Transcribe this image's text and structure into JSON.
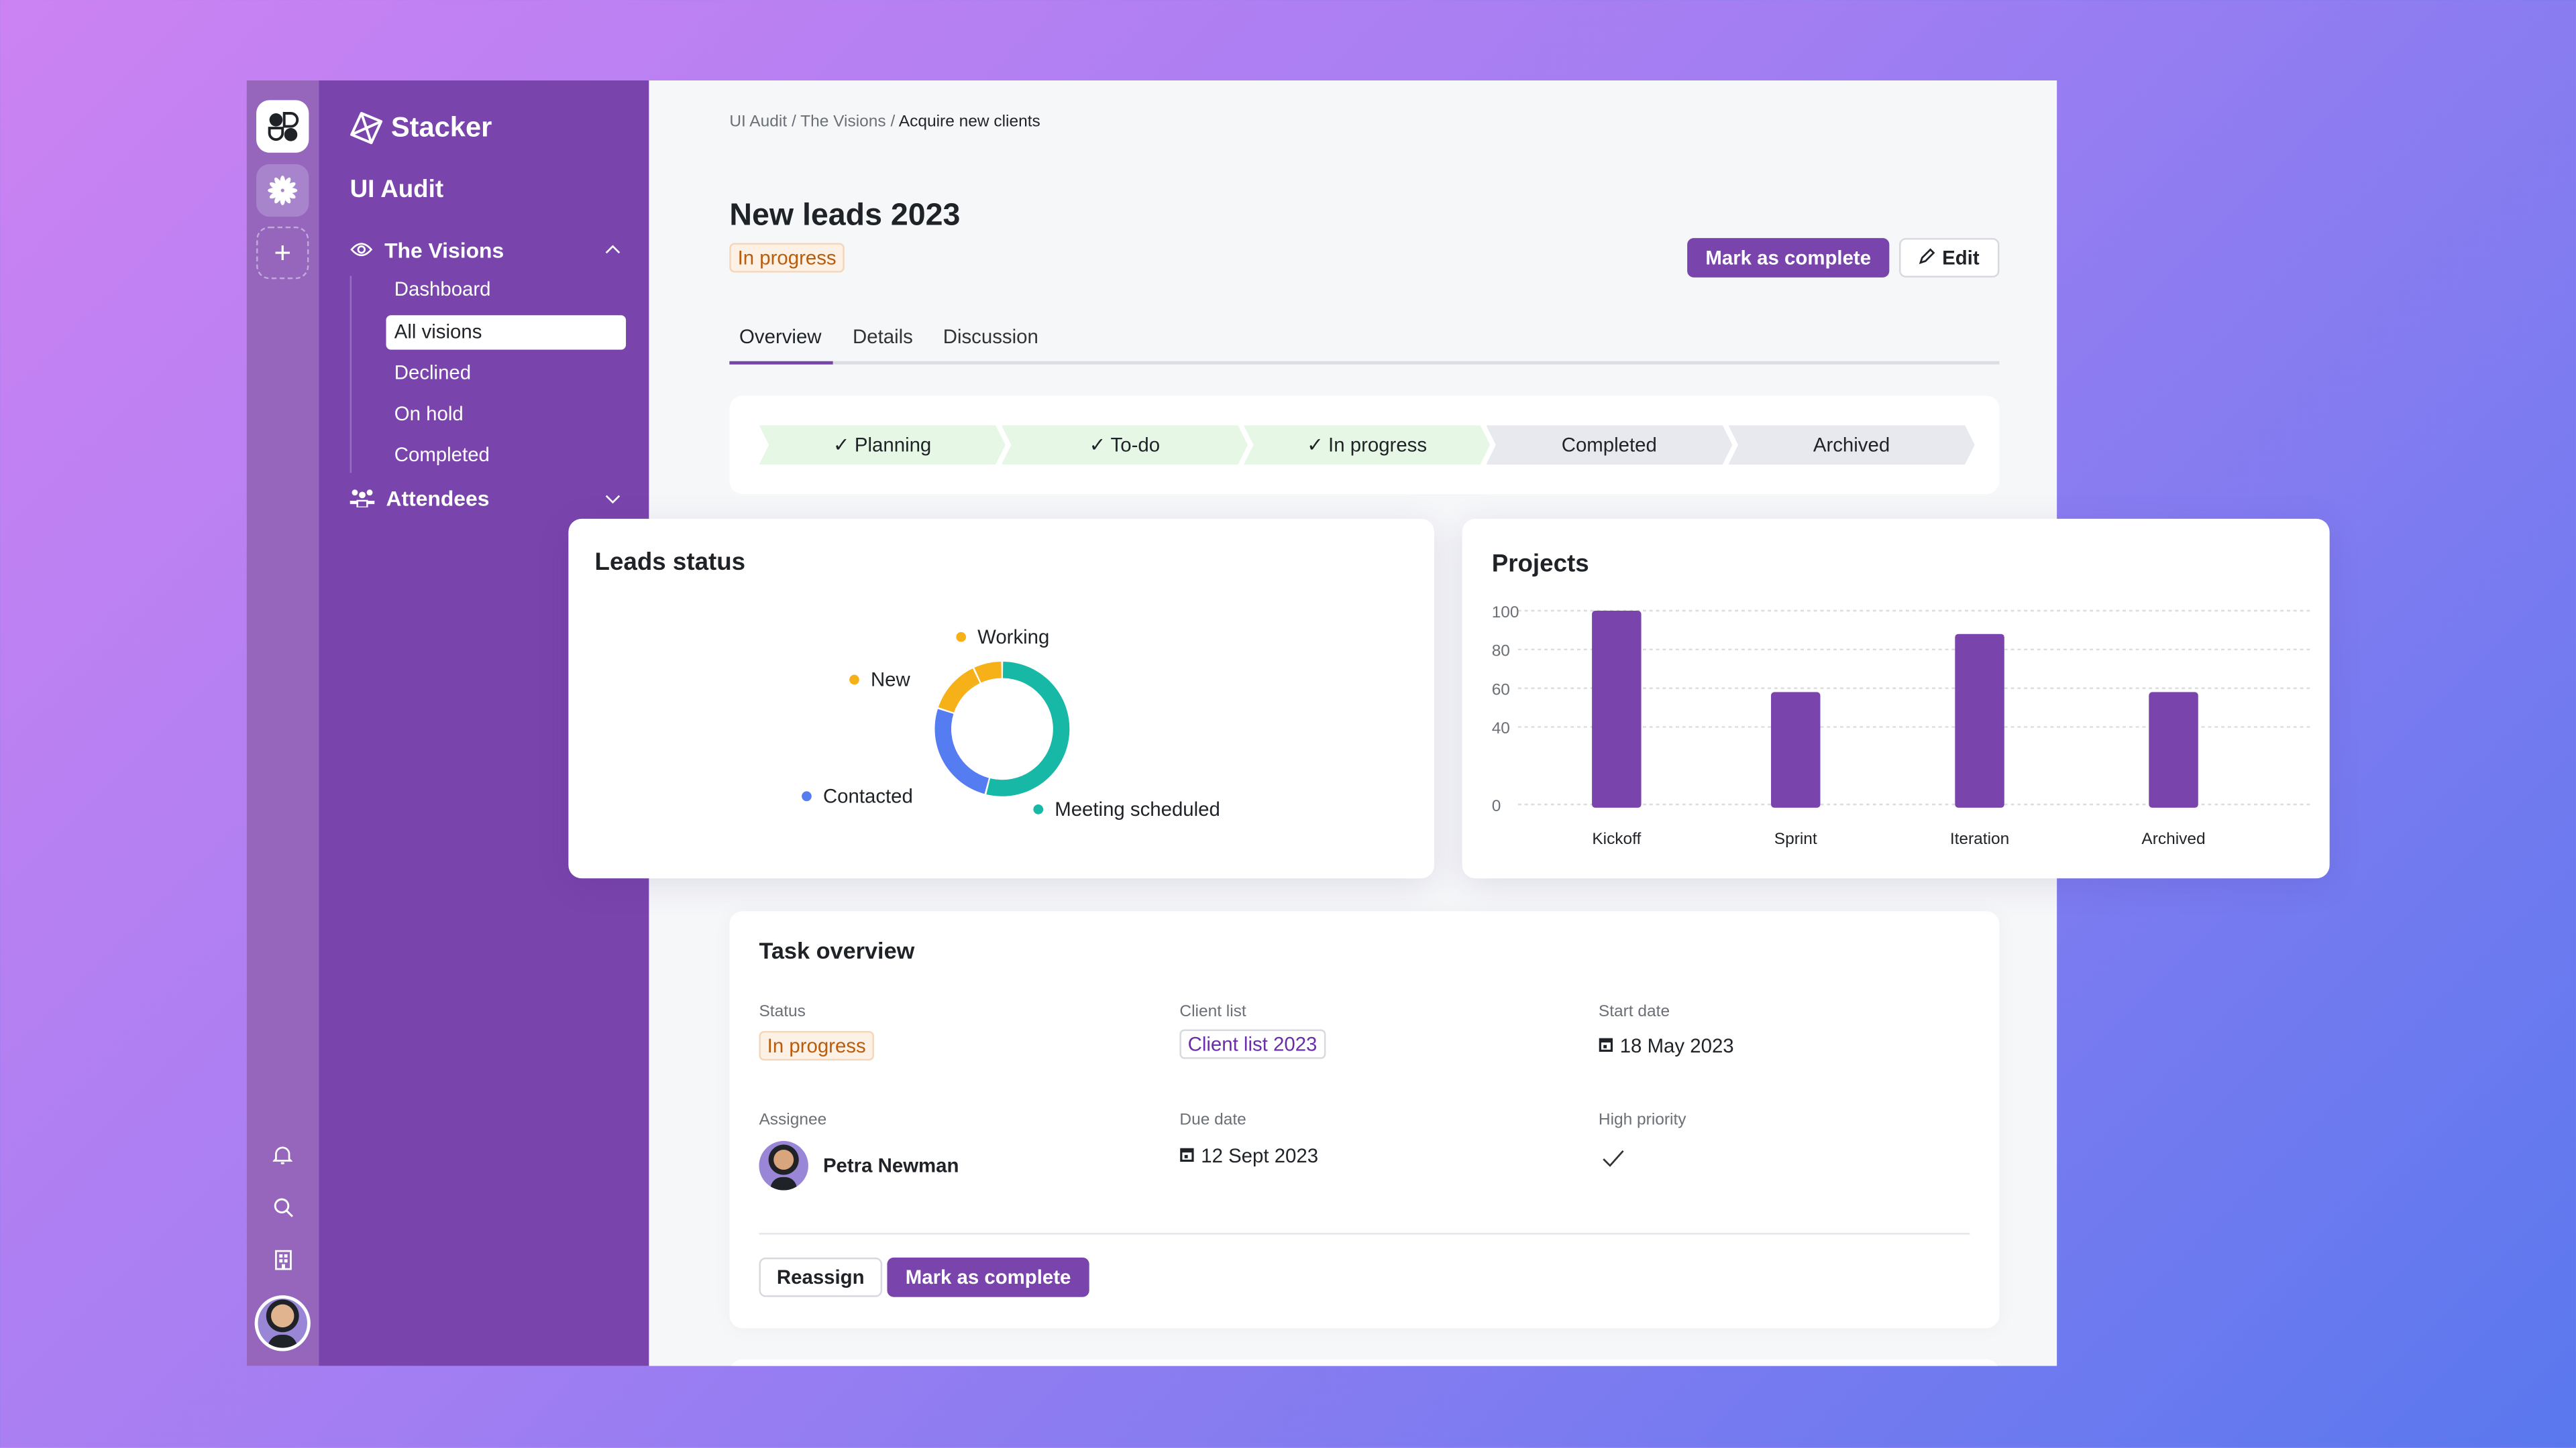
{
  "rail": {
    "icons": [
      "stacker-workspace-logo",
      "flower-workspace-icon",
      "add-workspace-icon",
      "bell-icon",
      "search-icon",
      "building-icon",
      "user-avatar"
    ]
  },
  "sidebar": {
    "brand": "Stacker",
    "app_title": "UI Audit",
    "sections": [
      {
        "label": "The Visions",
        "icon": "eye-icon",
        "expanded": true,
        "items": [
          {
            "label": "Dashboard"
          },
          {
            "label": "All visions",
            "active": true
          },
          {
            "label": "Declined"
          },
          {
            "label": "On hold"
          },
          {
            "label": "Completed"
          }
        ]
      },
      {
        "label": "Attendees",
        "icon": "people-icon",
        "expanded": false
      }
    ]
  },
  "header": {
    "breadcrumb": [
      "UI Audit",
      "The Visions",
      "Acquire new clients"
    ],
    "separator": "/",
    "title": "New leads 2023",
    "status": "In progress",
    "mark_complete": "Mark as complete",
    "edit": "Edit"
  },
  "tabs": [
    {
      "label": "Overview",
      "active": true
    },
    {
      "label": "Details"
    },
    {
      "label": "Discussion"
    }
  ],
  "pipeline": [
    {
      "label": "Planning",
      "done": true
    },
    {
      "label": "To-do",
      "done": true
    },
    {
      "label": "In progress",
      "done": true
    },
    {
      "label": "Completed",
      "done": false
    },
    {
      "label": "Archived",
      "done": false
    }
  ],
  "check": "✓",
  "chart_data": [
    {
      "type": "pie",
      "title": "Leads status",
      "donut": true,
      "slices": [
        {
          "label": "Meeting scheduled",
          "value": 54,
          "color": "#17b9a6"
        },
        {
          "label": "Contacted",
          "value": 26,
          "color": "#557cf1"
        },
        {
          "label": "New",
          "value": 13,
          "color": "#f7b118"
        },
        {
          "label": "Working",
          "value": 7,
          "color": "#f7b118"
        }
      ]
    },
    {
      "type": "bar",
      "title": "Projects",
      "categories": [
        "Kickoff",
        "Sprint",
        "Iteration",
        "Archived"
      ],
      "values": [
        100,
        58,
        88,
        58
      ],
      "ylim": [
        0,
        100
      ],
      "yticks": [
        "0",
        "40",
        "60",
        "80",
        "100"
      ],
      "grid": true,
      "color": "#7a44ad"
    }
  ],
  "task": {
    "title": "Task overview",
    "status_label": "Status",
    "status": "In progress",
    "client_label": "Client list",
    "client": "Client list 2023",
    "start_label": "Start date",
    "start": "18 May 2023",
    "assignee_label": "Assignee",
    "assignee": "Petra Newman",
    "due_label": "Due date",
    "due": "12 Sept 2023",
    "priority_label": "High priority",
    "priority": true,
    "reassign": "Reassign",
    "mark_complete": "Mark as complete"
  }
}
